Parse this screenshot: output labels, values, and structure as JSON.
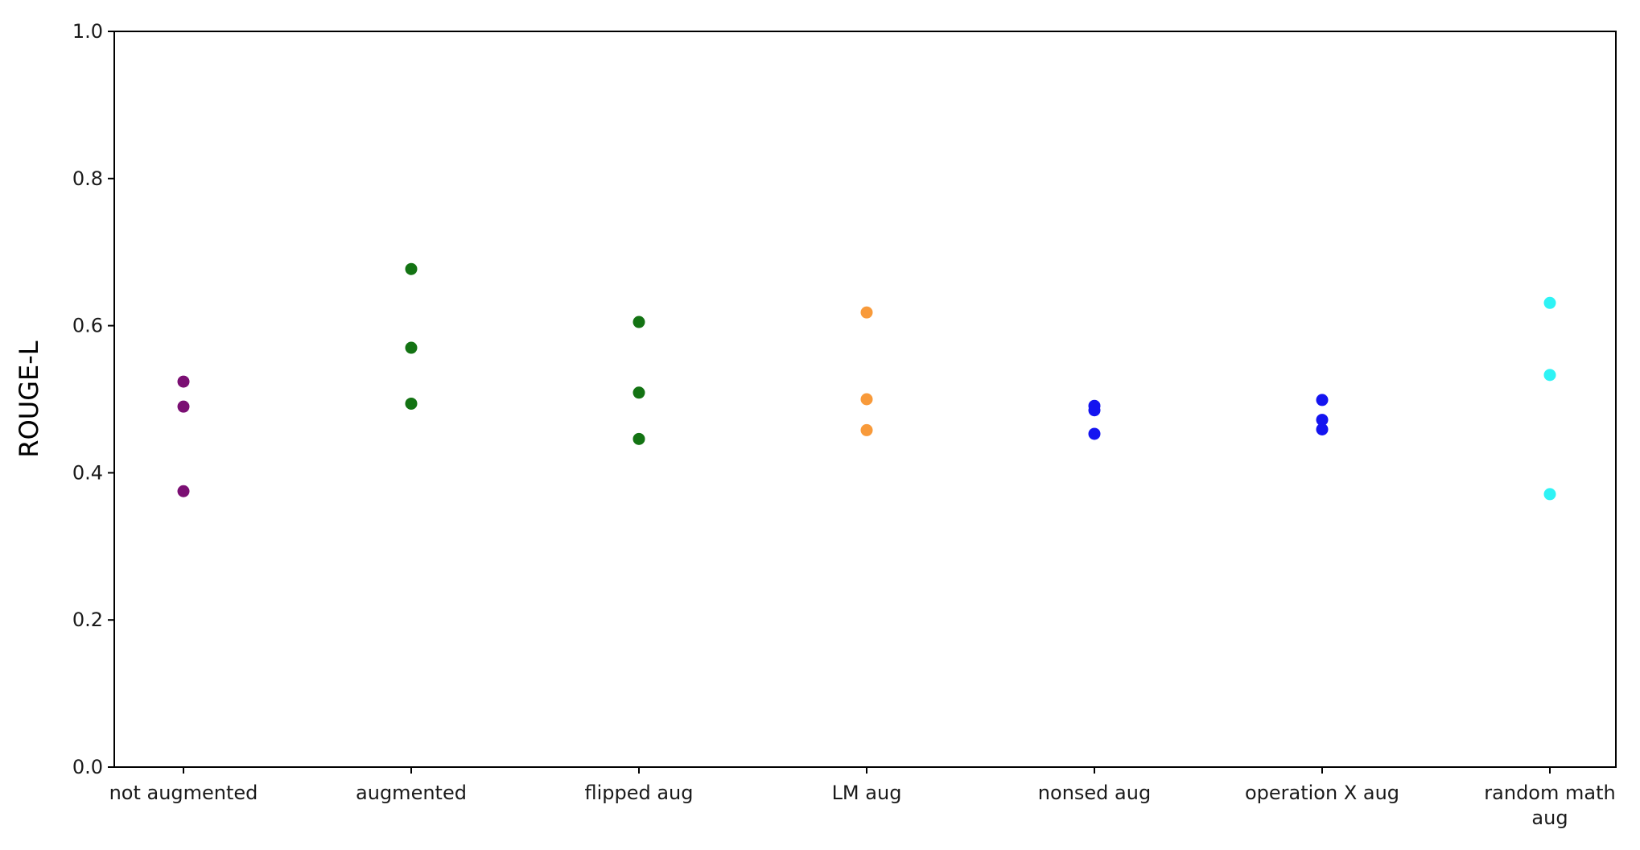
{
  "chart_data": {
    "type": "scatter",
    "title": "",
    "xlabel": "",
    "ylabel": "ROUGE-L",
    "ylim": [
      0.0,
      1.0
    ],
    "yticks": [
      "0.0",
      "0.2",
      "0.4",
      "0.6",
      "0.8",
      "1.0"
    ],
    "grid": false,
    "categories": [
      [
        "not augmented"
      ],
      [
        "augmented"
      ],
      [
        "flipped aug"
      ],
      [
        "LM aug"
      ],
      [
        "nonsed aug"
      ],
      [
        "operation X aug"
      ],
      [
        "random math",
        "aug"
      ]
    ],
    "series": [
      {
        "color": "#7b0f73",
        "values": [
          0.524,
          0.49,
          0.375
        ]
      },
      {
        "color": "#137313",
        "values": [
          0.677,
          0.57,
          0.494
        ]
      },
      {
        "color": "#137313",
        "values": [
          0.605,
          0.509,
          0.446
        ]
      },
      {
        "color": "#f89a3a",
        "values": [
          0.618,
          0.5,
          0.458
        ]
      },
      {
        "color": "#1414f0",
        "values": [
          0.491,
          0.485,
          0.453
        ]
      },
      {
        "color": "#1414f0",
        "values": [
          0.499,
          0.472,
          0.459
        ]
      },
      {
        "color": "#2ef3f5",
        "values": [
          0.631,
          0.533,
          0.371
        ]
      }
    ]
  }
}
